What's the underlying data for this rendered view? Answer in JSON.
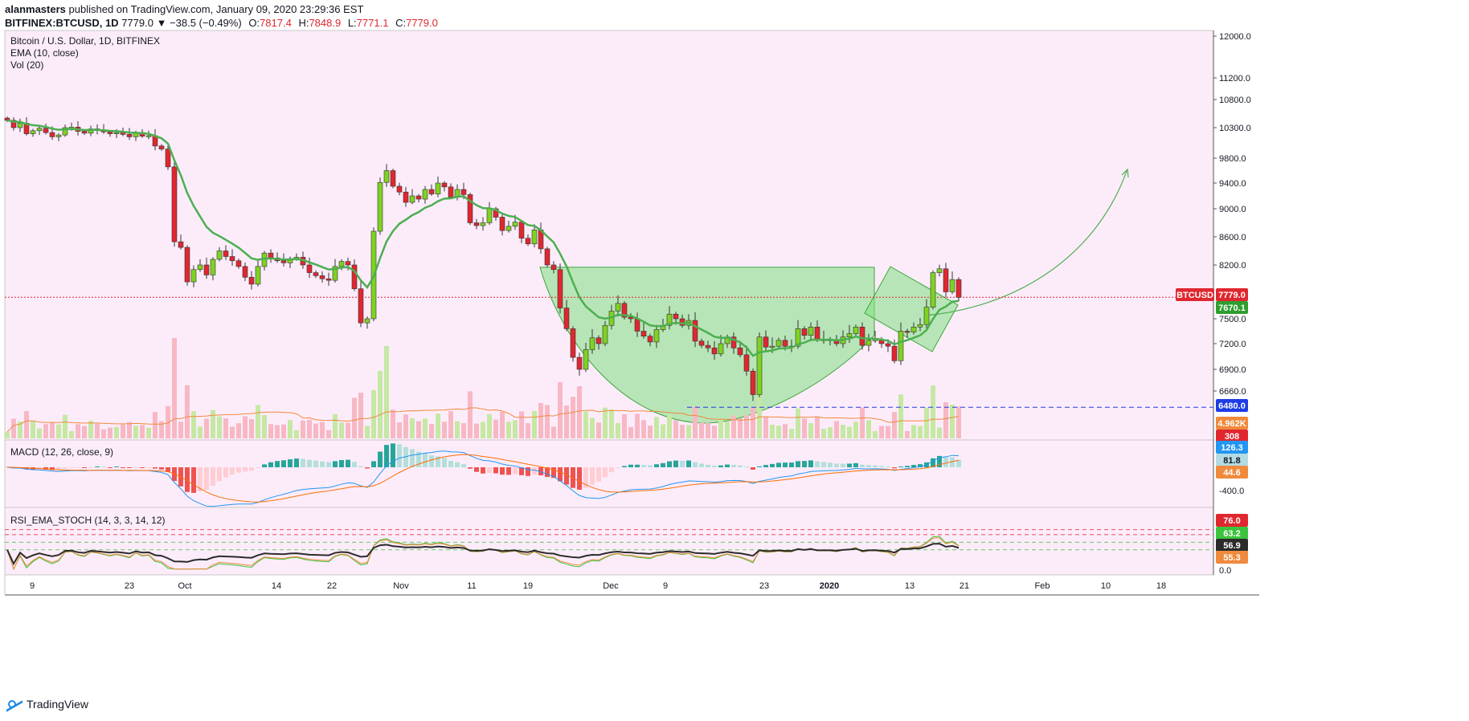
{
  "header": {
    "author": "alanmasters",
    "published_text": "published on TradingView.com, January 09, 2020 23:29:36 EST",
    "symbol": "BITFINEX:BTCUSD, 1D",
    "last": "7779.0",
    "change": "▼ −38.5 (−0.49%)",
    "o_label": "O:",
    "o": "7817.4",
    "h_label": "H:",
    "h": "7848.9",
    "l_label": "L:",
    "l": "7771.1",
    "c_label": "C:",
    "c": "7779.0"
  },
  "legend": {
    "title": "Bitcoin / U.S. Dollar, 1D, BITFINEX",
    "ema": "EMA (10, close)",
    "vol": "Vol (20)",
    "macd": "MACD (12, 26, close, 9)",
    "rsi": "RSI_EMA_STOCH (14, 3, 3, 14, 12)"
  },
  "brand": "TradingView",
  "colors": {
    "up": "#7ed321",
    "down": "#e0272f",
    "ema": "#4caf50",
    "bg": "#fcecfa",
    "macd_line": "#2196f3",
    "signal_line": "#ff6d00",
    "shape": "#7fe07f"
  },
  "chart_data": [
    {
      "type": "candlestick",
      "title": "Bitcoin / U.S. Dollar, 1D, BITFINEX",
      "y_ticks": [
        "12000.0",
        "11200.0",
        "10800.0",
        "10300.0",
        "9800.0",
        "9400.0",
        "9000.0",
        "8600.0",
        "8200.0",
        "7500.0",
        "7200.0",
        "6900.0",
        "6660.0"
      ],
      "x_ticks": [
        "9",
        "23",
        "Oct",
        "14",
        "22",
        "Nov",
        "11",
        "19",
        "Dec",
        "9",
        "23",
        "2020",
        "13",
        "21",
        "Feb",
        "10",
        "18"
      ],
      "price_labels": [
        {
          "text": "BTCUSD",
          "color": "#e0272f"
        },
        {
          "text": "7779.0",
          "color": "#e0272f"
        },
        {
          "text": "7670.1",
          "color": "#2e9e2e"
        },
        {
          "text": "6480.0",
          "color": "#1e3ce6"
        },
        {
          "text": "4.962K",
          "color": "#f08a3c"
        },
        {
          "text": "308",
          "color": "#e0272f"
        }
      ],
      "horizontal_lines": [
        {
          "value": 7779.0,
          "color": "#e0272f",
          "style": "dotted"
        },
        {
          "value": 6480.0,
          "color": "#1e3ce6",
          "style": "dashed"
        }
      ],
      "closes": [
        10430,
        10300,
        10380,
        10200,
        10250,
        10290,
        10220,
        10150,
        10180,
        10300,
        10310,
        10240,
        10210,
        10280,
        10260,
        10230,
        10200,
        10220,
        10190,
        10150,
        10220,
        10160,
        10170,
        10000,
        9950,
        9660,
        8530,
        8450,
        7980,
        8140,
        8200,
        8070,
        8280,
        8400,
        8320,
        8260,
        8180,
        8040,
        7950,
        8180,
        8370,
        8300,
        8260,
        8230,
        8290,
        8310,
        8200,
        8100,
        8060,
        8020,
        8000,
        8180,
        8250,
        8200,
        7890,
        7450,
        7500,
        8680,
        9410,
        9600,
        9350,
        9260,
        9100,
        9200,
        9150,
        9300,
        9230,
        9400,
        9340,
        9180,
        9300,
        9220,
        8800,
        8760,
        8800,
        9000,
        8880,
        8690,
        8750,
        8810,
        8580,
        8500,
        8700,
        8430,
        8200,
        8140,
        7640,
        7380,
        7040,
        6900,
        7130,
        7270,
        7200,
        7420,
        7600,
        7700,
        7520,
        7500,
        7350,
        7290,
        7220,
        7370,
        7420,
        7560,
        7500,
        7420,
        7480,
        7230,
        7180,
        7150,
        7080,
        7200,
        7280,
        7150,
        7070,
        6880,
        6620,
        7280,
        7160,
        7170,
        7240,
        7170,
        7170,
        7380,
        7300,
        7400,
        7250,
        7250,
        7250,
        7200,
        7280,
        7320,
        7400,
        7180,
        7240,
        7250,
        7200,
        7170,
        7000,
        7350,
        7340,
        7400,
        7430,
        7650,
        8100,
        8150,
        7850,
        8010,
        7779
      ],
      "ema_last": 7670.1,
      "volume_last": "308",
      "volume_ma_last": "4.962K"
    },
    {
      "type": "line",
      "title": "MACD (12, 26, close, 9)",
      "y_ticks": [
        "-400.0"
      ],
      "series": [
        {
          "name": "MACD"
        },
        {
          "name": "Signal"
        },
        {
          "name": "Histogram"
        }
      ],
      "last_values": [
        "126.3",
        "81.8",
        "44.6"
      ],
      "label_colors": [
        "#2196f3",
        "#b3dbe3",
        "#f08a3c"
      ]
    },
    {
      "type": "line",
      "title": "RSI_EMA_STOCH (14, 3, 3, 14, 12)",
      "y_ticks": [
        "0.0"
      ],
      "levels": [
        80,
        70,
        55,
        40
      ],
      "last_values": [
        "76.0",
        "63.2",
        "56.9",
        "55.3"
      ],
      "label_colors": [
        "#e0272f",
        "#3cc43c",
        "#2b2b2b",
        "#f08a3c"
      ]
    }
  ]
}
